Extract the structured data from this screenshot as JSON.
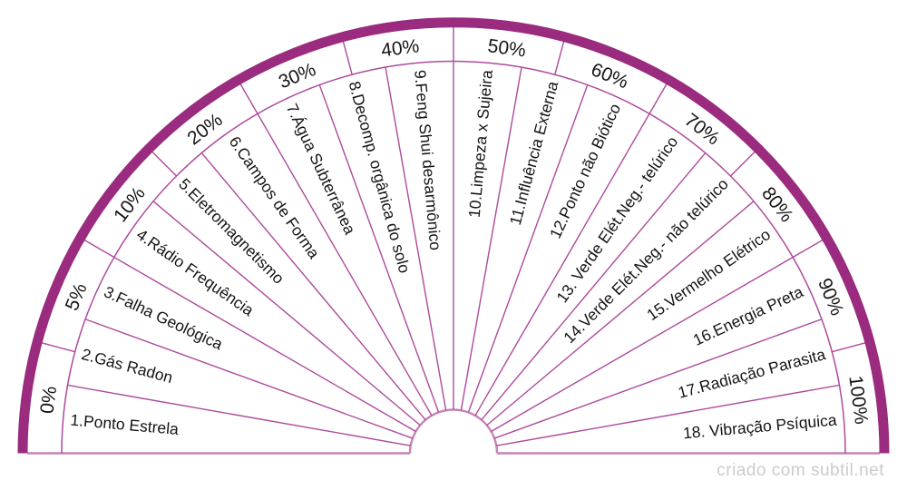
{
  "chart": {
    "type": "semicircular-radiesthesia-dial",
    "percent_scale": {
      "labels": [
        "0%",
        "5%",
        "10%",
        "20%",
        "30%",
        "40%",
        "50%",
        "60%",
        "70%",
        "80%",
        "90%",
        "100%"
      ]
    },
    "sectors": [
      "1.Ponto Estrela",
      "2.Gás Radon",
      "3.Falha Geológica",
      "4.Rádio Frequência",
      "5.Eletromagnetismo",
      "6.Campos de Forma",
      "7.Água Subterrânea",
      "8.Decomp. orgânica do solo",
      "9.Feng Shui desarmônico",
      "10.Limpeza x Sujeira",
      "11.Influência Externa",
      "12.Ponto não Biótico",
      "13. Verde Elét.Neg.- telúrico",
      "14.Verde Elét.Neg.- não telúrico",
      "15.Vermelho Elétrico",
      "16.Energia Preta",
      "17.Radiação Parasita",
      "18. Vibração Psíquica"
    ],
    "colors": {
      "outer_band": "#9a2b7e",
      "thin_line": "#ad4a9c",
      "soft_line": "#c584b7",
      "label_text": "#141414"
    }
  },
  "footer": {
    "credit": "criado com subtil.net"
  }
}
